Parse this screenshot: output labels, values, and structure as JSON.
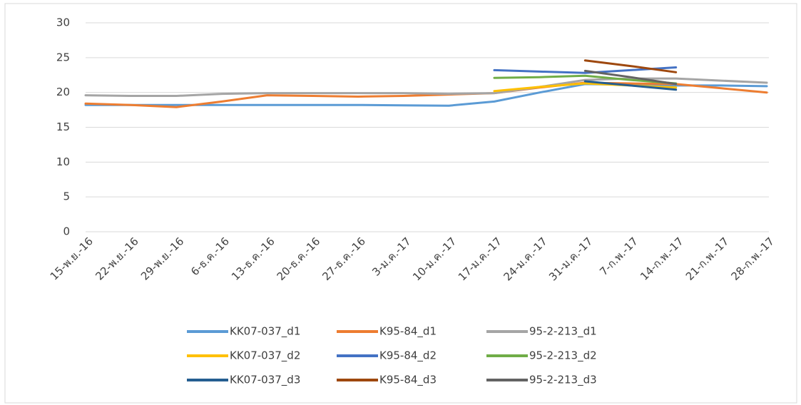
{
  "chart_data": {
    "type": "line",
    "categories": [
      "15-พ.ย.-16",
      "22-พ.ย.-16",
      "29-พ.ย.-16",
      "6-ธ.ค.-16",
      "13-ธ.ค.-16",
      "20-ธ.ค.-16",
      "27-ธ.ค.-16",
      "3-ม.ค.-17",
      "10-ม.ค.-17",
      "17-ม.ค.-17",
      "24-ม.ค.-17",
      "31-ม.ค.-17",
      "7-ก.พ.-17",
      "14-ก.พ.-17",
      "21-ก.พ.-17",
      "28-ก.พ.-17"
    ],
    "series": [
      {
        "name": "KK07-037_d1",
        "color": "#5b9bd5",
        "values": [
          18.2,
          18.2,
          18.2,
          18.2,
          18.2,
          18.2,
          18.2,
          18.15,
          18.1,
          18.7,
          20.0,
          21.2,
          21.1,
          21.0,
          21.0,
          20.9
        ]
      },
      {
        "name": "K95-84_d1",
        "color": "#ed7d31",
        "values": [
          18.4,
          18.2,
          17.9,
          18.7,
          19.6,
          19.5,
          19.4,
          19.5,
          19.7,
          19.9,
          20.7,
          21.4,
          21.3,
          21.2,
          20.6,
          20.0
        ]
      },
      {
        "name": "95-2-213_d1",
        "color": "#a5a5a5",
        "values": [
          19.6,
          19.5,
          19.5,
          19.8,
          19.9,
          19.9,
          19.9,
          19.9,
          19.8,
          19.9,
          20.8,
          21.8,
          22.0,
          22.0,
          21.7,
          21.4
        ]
      },
      {
        "name": "KK07-037_d2",
        "color": "#ffc000",
        "values": [
          null,
          null,
          null,
          null,
          null,
          null,
          null,
          null,
          null,
          20.2,
          20.8,
          21.3,
          21.0,
          20.7,
          null,
          null
        ]
      },
      {
        "name": "K95-84_d2",
        "color": "#4472c4",
        "values": [
          null,
          null,
          null,
          null,
          null,
          null,
          null,
          null,
          null,
          23.2,
          23.0,
          22.8,
          23.2,
          23.6,
          null,
          null
        ]
      },
      {
        "name": "95-2-213_d2",
        "color": "#70ad47",
        "values": [
          null,
          null,
          null,
          null,
          null,
          null,
          null,
          null,
          null,
          22.1,
          22.2,
          22.4,
          21.8,
          21.3,
          null,
          null
        ]
      },
      {
        "name": "KK07-037_d3",
        "color": "#255e91",
        "values": [
          null,
          null,
          null,
          null,
          null,
          null,
          null,
          null,
          null,
          null,
          null,
          21.6,
          21.0,
          20.4,
          null,
          null
        ]
      },
      {
        "name": "K95-84_d3",
        "color": "#9e480e",
        "values": [
          null,
          null,
          null,
          null,
          null,
          null,
          null,
          null,
          null,
          null,
          null,
          24.6,
          23.8,
          22.9,
          null,
          null
        ]
      },
      {
        "name": "95-2-213_d3",
        "color": "#636363",
        "values": [
          null,
          null,
          null,
          null,
          null,
          null,
          null,
          null,
          null,
          null,
          null,
          23.1,
          22.2,
          21.2,
          null,
          null
        ]
      }
    ],
    "ylim": [
      0,
      30
    ],
    "yticks": [
      0,
      5,
      10,
      15,
      20,
      25,
      30
    ],
    "grid": true
  }
}
